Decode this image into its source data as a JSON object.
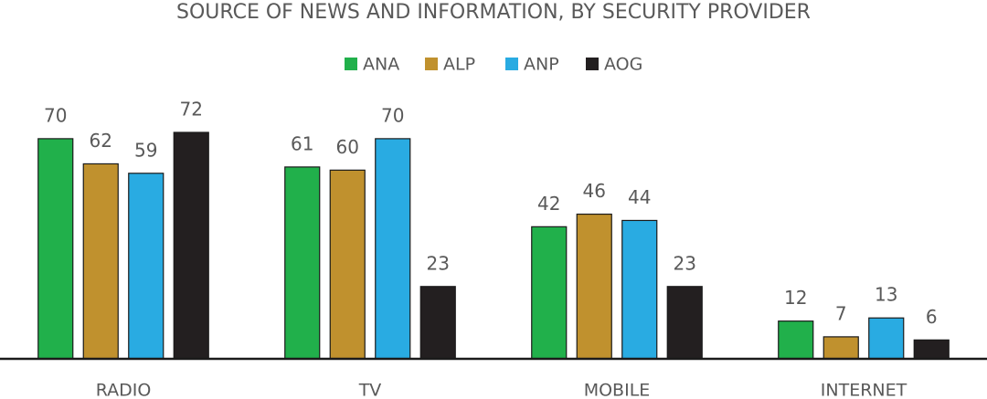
{
  "chart_data": {
    "type": "bar",
    "title": "SOURCE OF NEWS AND INFORMATION, BY SECURITY PROVIDER",
    "categories": [
      "RADIO",
      "TV",
      "MOBILE",
      "INTERNET"
    ],
    "series": [
      {
        "name": "ANA",
        "color": "#21b04b",
        "values": [
          70,
          61,
          42,
          12
        ]
      },
      {
        "name": "ALP",
        "color": "#c0912e",
        "values": [
          62,
          60,
          46,
          7
        ]
      },
      {
        "name": "ANP",
        "color": "#29abe2",
        "values": [
          59,
          70,
          44,
          13
        ]
      },
      {
        "name": "AOG",
        "color": "#231f20",
        "values": [
          72,
          23,
          23,
          6
        ]
      }
    ],
    "legend": "top"
  }
}
